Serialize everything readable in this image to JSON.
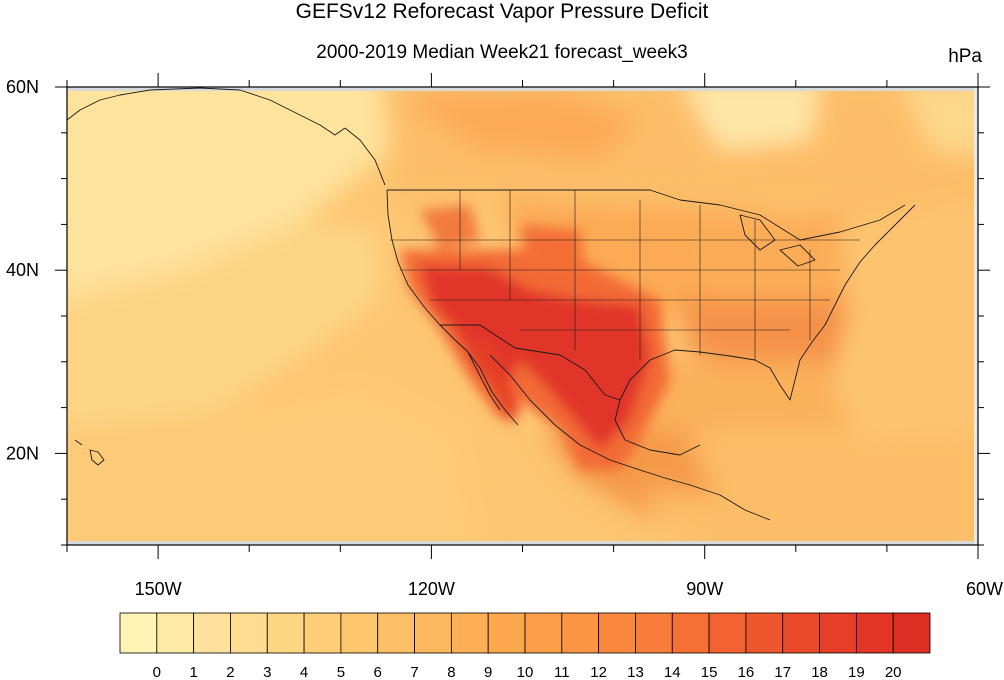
{
  "title": "GEFSv12 Reforecast Vapor Pressure Deficit",
  "subtitle": "2000-2019 Median Week21 forecast_week3",
  "units": "hPa",
  "map": {
    "lon_range": [
      -160,
      -60
    ],
    "lat_range": [
      10,
      60
    ],
    "lat_labels": [
      "60N",
      "40N",
      "20N"
    ],
    "lon_labels": [
      "150W",
      "120W",
      "90W",
      "60W"
    ]
  },
  "colorbar": {
    "labels": [
      "0",
      "1",
      "2",
      "3",
      "4",
      "5",
      "6",
      "7",
      "8",
      "9",
      "10",
      "11",
      "12",
      "13",
      "14",
      "15",
      "16",
      "17",
      "18",
      "19",
      "20"
    ],
    "colors": [
      "#fff3b5",
      "#fee9a5",
      "#fee29b",
      "#fedc90",
      "#fed583",
      "#fece78",
      "#fec76e",
      "#fdbf65",
      "#fdb75c",
      "#fdaf55",
      "#fca84e",
      "#fc9f48",
      "#fb9443",
      "#fa893f",
      "#f97d3a",
      "#f67035",
      "#f26331",
      "#ee562d",
      "#ea4a2a",
      "#e63f28",
      "#e33626",
      "#df2f24"
    ]
  },
  "regions": {
    "ocean_pacific_nw": "#fde39d",
    "ocean_pacific_sw": "#fdca77",
    "ocean_atlantic": "#fdc472",
    "canada": "#fdbc66",
    "plains": "#fcab56",
    "southwest_core": "#e0352a",
    "southwest_ring": "#f46d36",
    "mexico_south": "#f59a4a",
    "southeast": "#f5944a"
  }
}
